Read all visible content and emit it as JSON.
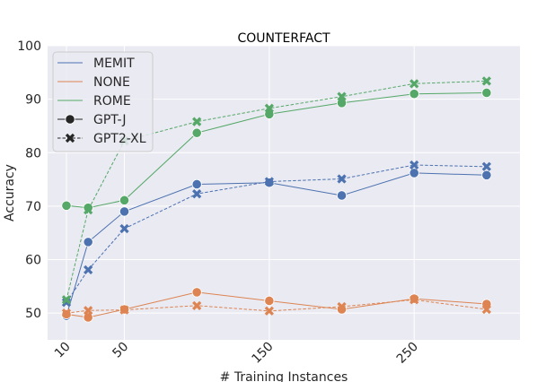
{
  "chart_data": {
    "type": "line",
    "title": "COUNTERFACT",
    "xlabel": "# Training Instances",
    "ylabel": "Accuracy",
    "xlim": [
      -3,
      323
    ],
    "ylim": [
      45,
      100
    ],
    "xticks": [
      10,
      50,
      150,
      250
    ],
    "yticks": [
      50,
      60,
      70,
      80,
      90,
      100
    ],
    "grid": true,
    "legend_position": "upper-left",
    "x": [
      10,
      25,
      50,
      100,
      150,
      200,
      250,
      300
    ],
    "series": [
      {
        "name": "MEMIT",
        "model": "GPT-J",
        "color": "#4c72b0",
        "values": [
          49.5,
          63.3,
          69.0,
          74.1,
          74.4,
          72.0,
          76.2,
          75.8
        ]
      },
      {
        "name": "MEMIT",
        "model": "GPT2-XL",
        "color": "#4c72b0",
        "values": [
          52.0,
          58.1,
          65.8,
          72.3,
          74.6,
          75.1,
          77.7,
          77.4
        ]
      },
      {
        "name": "NONE",
        "model": "GPT-J",
        "color": "#dd8452",
        "values": [
          49.8,
          49.2,
          50.7,
          53.9,
          52.3,
          50.7,
          52.7,
          51.7
        ]
      },
      {
        "name": "NONE",
        "model": "GPT2-XL",
        "color": "#dd8452",
        "values": [
          50.0,
          50.5,
          50.6,
          51.4,
          50.4,
          51.2,
          52.5,
          50.7
        ]
      },
      {
        "name": "ROME",
        "model": "GPT-J",
        "color": "#55a868",
        "values": [
          70.1,
          69.7,
          71.1,
          83.7,
          87.2,
          89.3,
          91.0,
          91.2
        ]
      },
      {
        "name": "ROME",
        "model": "GPT2-XL",
        "color": "#55a868",
        "values": [
          52.5,
          69.3,
          82.2,
          85.8,
          88.3,
          90.5,
          92.9,
          93.4
        ]
      }
    ],
    "legend": {
      "methods": [
        {
          "label": "MEMIT",
          "color": "#4c72b0"
        },
        {
          "label": "NONE",
          "color": "#dd8452"
        },
        {
          "label": "ROME",
          "color": "#55a868"
        }
      ],
      "models": [
        {
          "label": "GPT-J",
          "marker": "circle",
          "linestyle": "solid"
        },
        {
          "label": "GPT2-XL",
          "marker": "x",
          "linestyle": "dashed"
        }
      ]
    }
  }
}
